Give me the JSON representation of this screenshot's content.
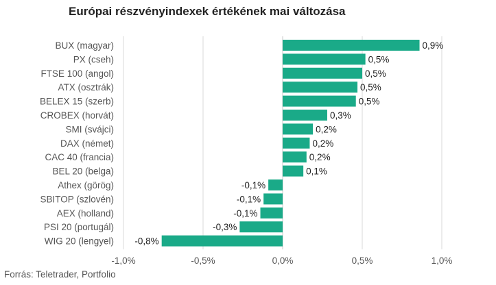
{
  "chart_data": {
    "type": "bar",
    "orientation": "horizontal",
    "title": "Európai részvényindexek értékének mai változása",
    "categories": [
      "BUX (magyar)",
      "PX (cseh)",
      "FTSE 100 (angol)",
      "ATX (osztrák)",
      "BELEX 15 (szerb)",
      "CROBEX (horvát)",
      "SMI (svájci)",
      "DAX (német)",
      "CAC 40 (francia)",
      "BEL 20 (belga)",
      "Athex (görög)",
      "SBITOP (szlovén)",
      "AEX (holland)",
      "PSI 20 (portugál)",
      "WIG 20 (lengyel)"
    ],
    "values": [
      0.86,
      0.52,
      0.5,
      0.47,
      0.46,
      0.28,
      0.19,
      0.17,
      0.15,
      0.13,
      -0.09,
      -0.12,
      -0.14,
      -0.27,
      -0.76
    ],
    "data_labels": [
      "0,9%",
      "0,5%",
      "0,5%",
      "0,5%",
      "0,5%",
      "0,3%",
      "0,2%",
      "0,2%",
      "0,2%",
      "0,1%",
      "-0,1%",
      "-0,1%",
      "-0,1%",
      "-0,3%",
      "-0,8%"
    ],
    "xlim": [
      -1.0,
      1.0
    ],
    "xticks": [
      -1.0,
      -0.5,
      0.0,
      0.5,
      1.0
    ],
    "xtick_labels": [
      "-1,0%",
      "-0,5%",
      "0,0%",
      "0,5%",
      "1,0%"
    ],
    "grid": true,
    "bar_color": "#1aaa88",
    "grid_color": "#d9d9d9"
  },
  "source": "Forrás: Teletrader, Portfolio"
}
